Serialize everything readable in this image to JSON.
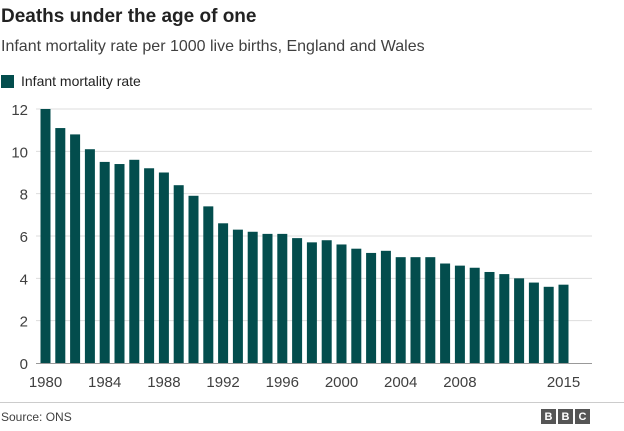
{
  "chart_data": {
    "type": "bar",
    "title": "Deaths under the age of one",
    "subtitle": "Infant mortality rate per 1000 live births, England and Wales",
    "legend": "Infant mortality rate",
    "color": "#034d4d",
    "categories": [
      1980,
      1981,
      1982,
      1983,
      1984,
      1985,
      1986,
      1987,
      1988,
      1989,
      1990,
      1991,
      1992,
      1993,
      1994,
      1995,
      1996,
      1997,
      1998,
      1999,
      2000,
      2001,
      2002,
      2003,
      2004,
      2005,
      2006,
      2007,
      2008,
      2009,
      2010,
      2011,
      2012,
      2013,
      2014,
      2015
    ],
    "values": [
      12.0,
      11.1,
      10.8,
      10.1,
      9.5,
      9.4,
      9.6,
      9.2,
      9.0,
      8.4,
      7.9,
      7.4,
      6.6,
      6.3,
      6.2,
      6.1,
      6.1,
      5.9,
      5.7,
      5.8,
      5.6,
      5.4,
      5.2,
      5.3,
      5.0,
      5.0,
      5.0,
      4.7,
      4.6,
      4.5,
      4.3,
      4.2,
      4.0,
      3.8,
      3.6,
      3.7
    ],
    "xticks": [
      "1980",
      "1984",
      "1988",
      "1992",
      "1996",
      "2000",
      "2004",
      "2008",
      "2015"
    ],
    "yticks": [
      0,
      2,
      4,
      6,
      8,
      10,
      12
    ],
    "ylim": [
      0,
      12
    ],
    "grid": true,
    "legend_position": "top-left"
  },
  "source": "Source: ONS",
  "logo": "BBC"
}
